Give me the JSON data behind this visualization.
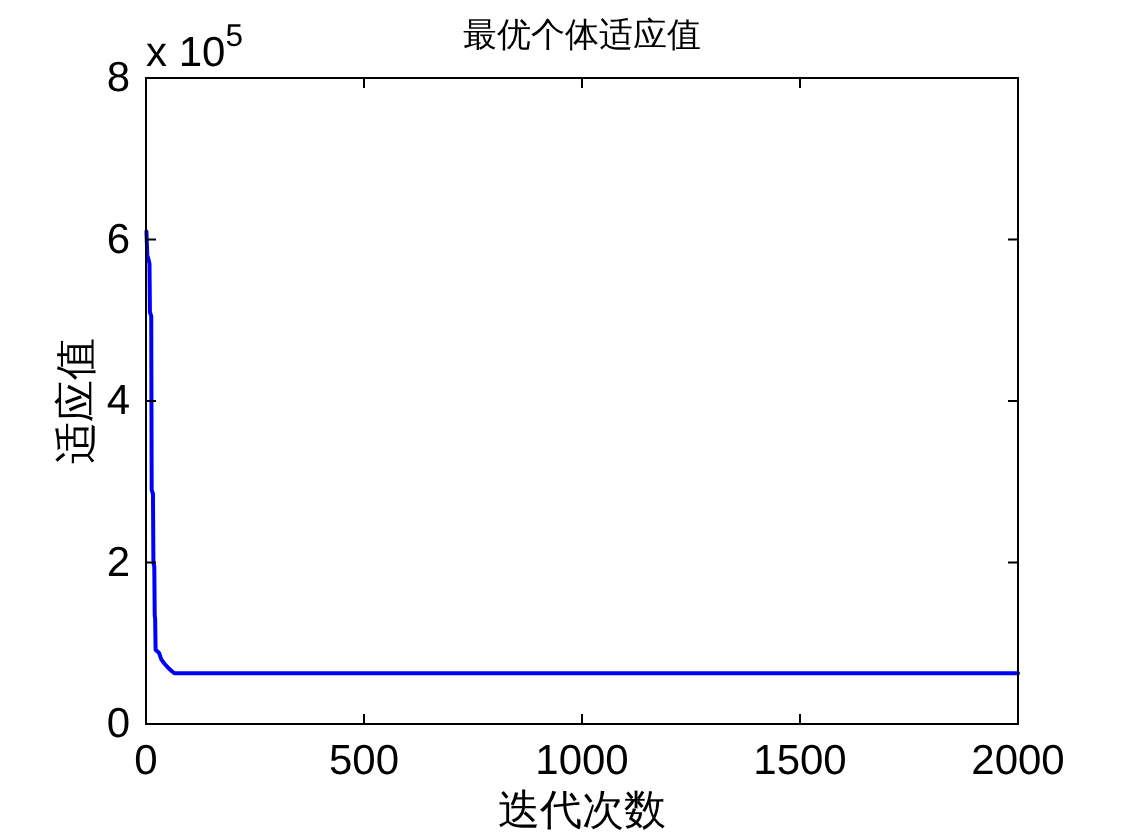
{
  "chart_data": {
    "type": "line",
    "title": "最优个体适应值",
    "xlabel": "迭代次数",
    "ylabel": "适应值",
    "annotations": [
      "x 10$^{5}$"
    ],
    "x": [
      1,
      3,
      6,
      8,
      9,
      12,
      13,
      16,
      17,
      19,
      20,
      21,
      22,
      30,
      35,
      42,
      50,
      60,
      65,
      2000
    ],
    "series": [
      {
        "color": "#0000ff",
        "values": [
          6.1,
          5.8,
          5.75,
          5.7,
          5.1,
          5.05,
          2.9,
          2.85,
          2.0,
          1.95,
          1.35,
          1.3,
          0.92,
          0.88,
          0.8,
          0.75,
          0.7,
          0.65,
          0.63,
          0.63
        ]
      }
    ],
    "xlim": [
      0,
      2000
    ],
    "xticks": [
      0,
      500,
      1000,
      1500,
      2000
    ],
    "ylim": [
      0,
      8
    ],
    "yticks": [
      0,
      2,
      4,
      6,
      8
    ],
    "line_style": "solid"
  }
}
